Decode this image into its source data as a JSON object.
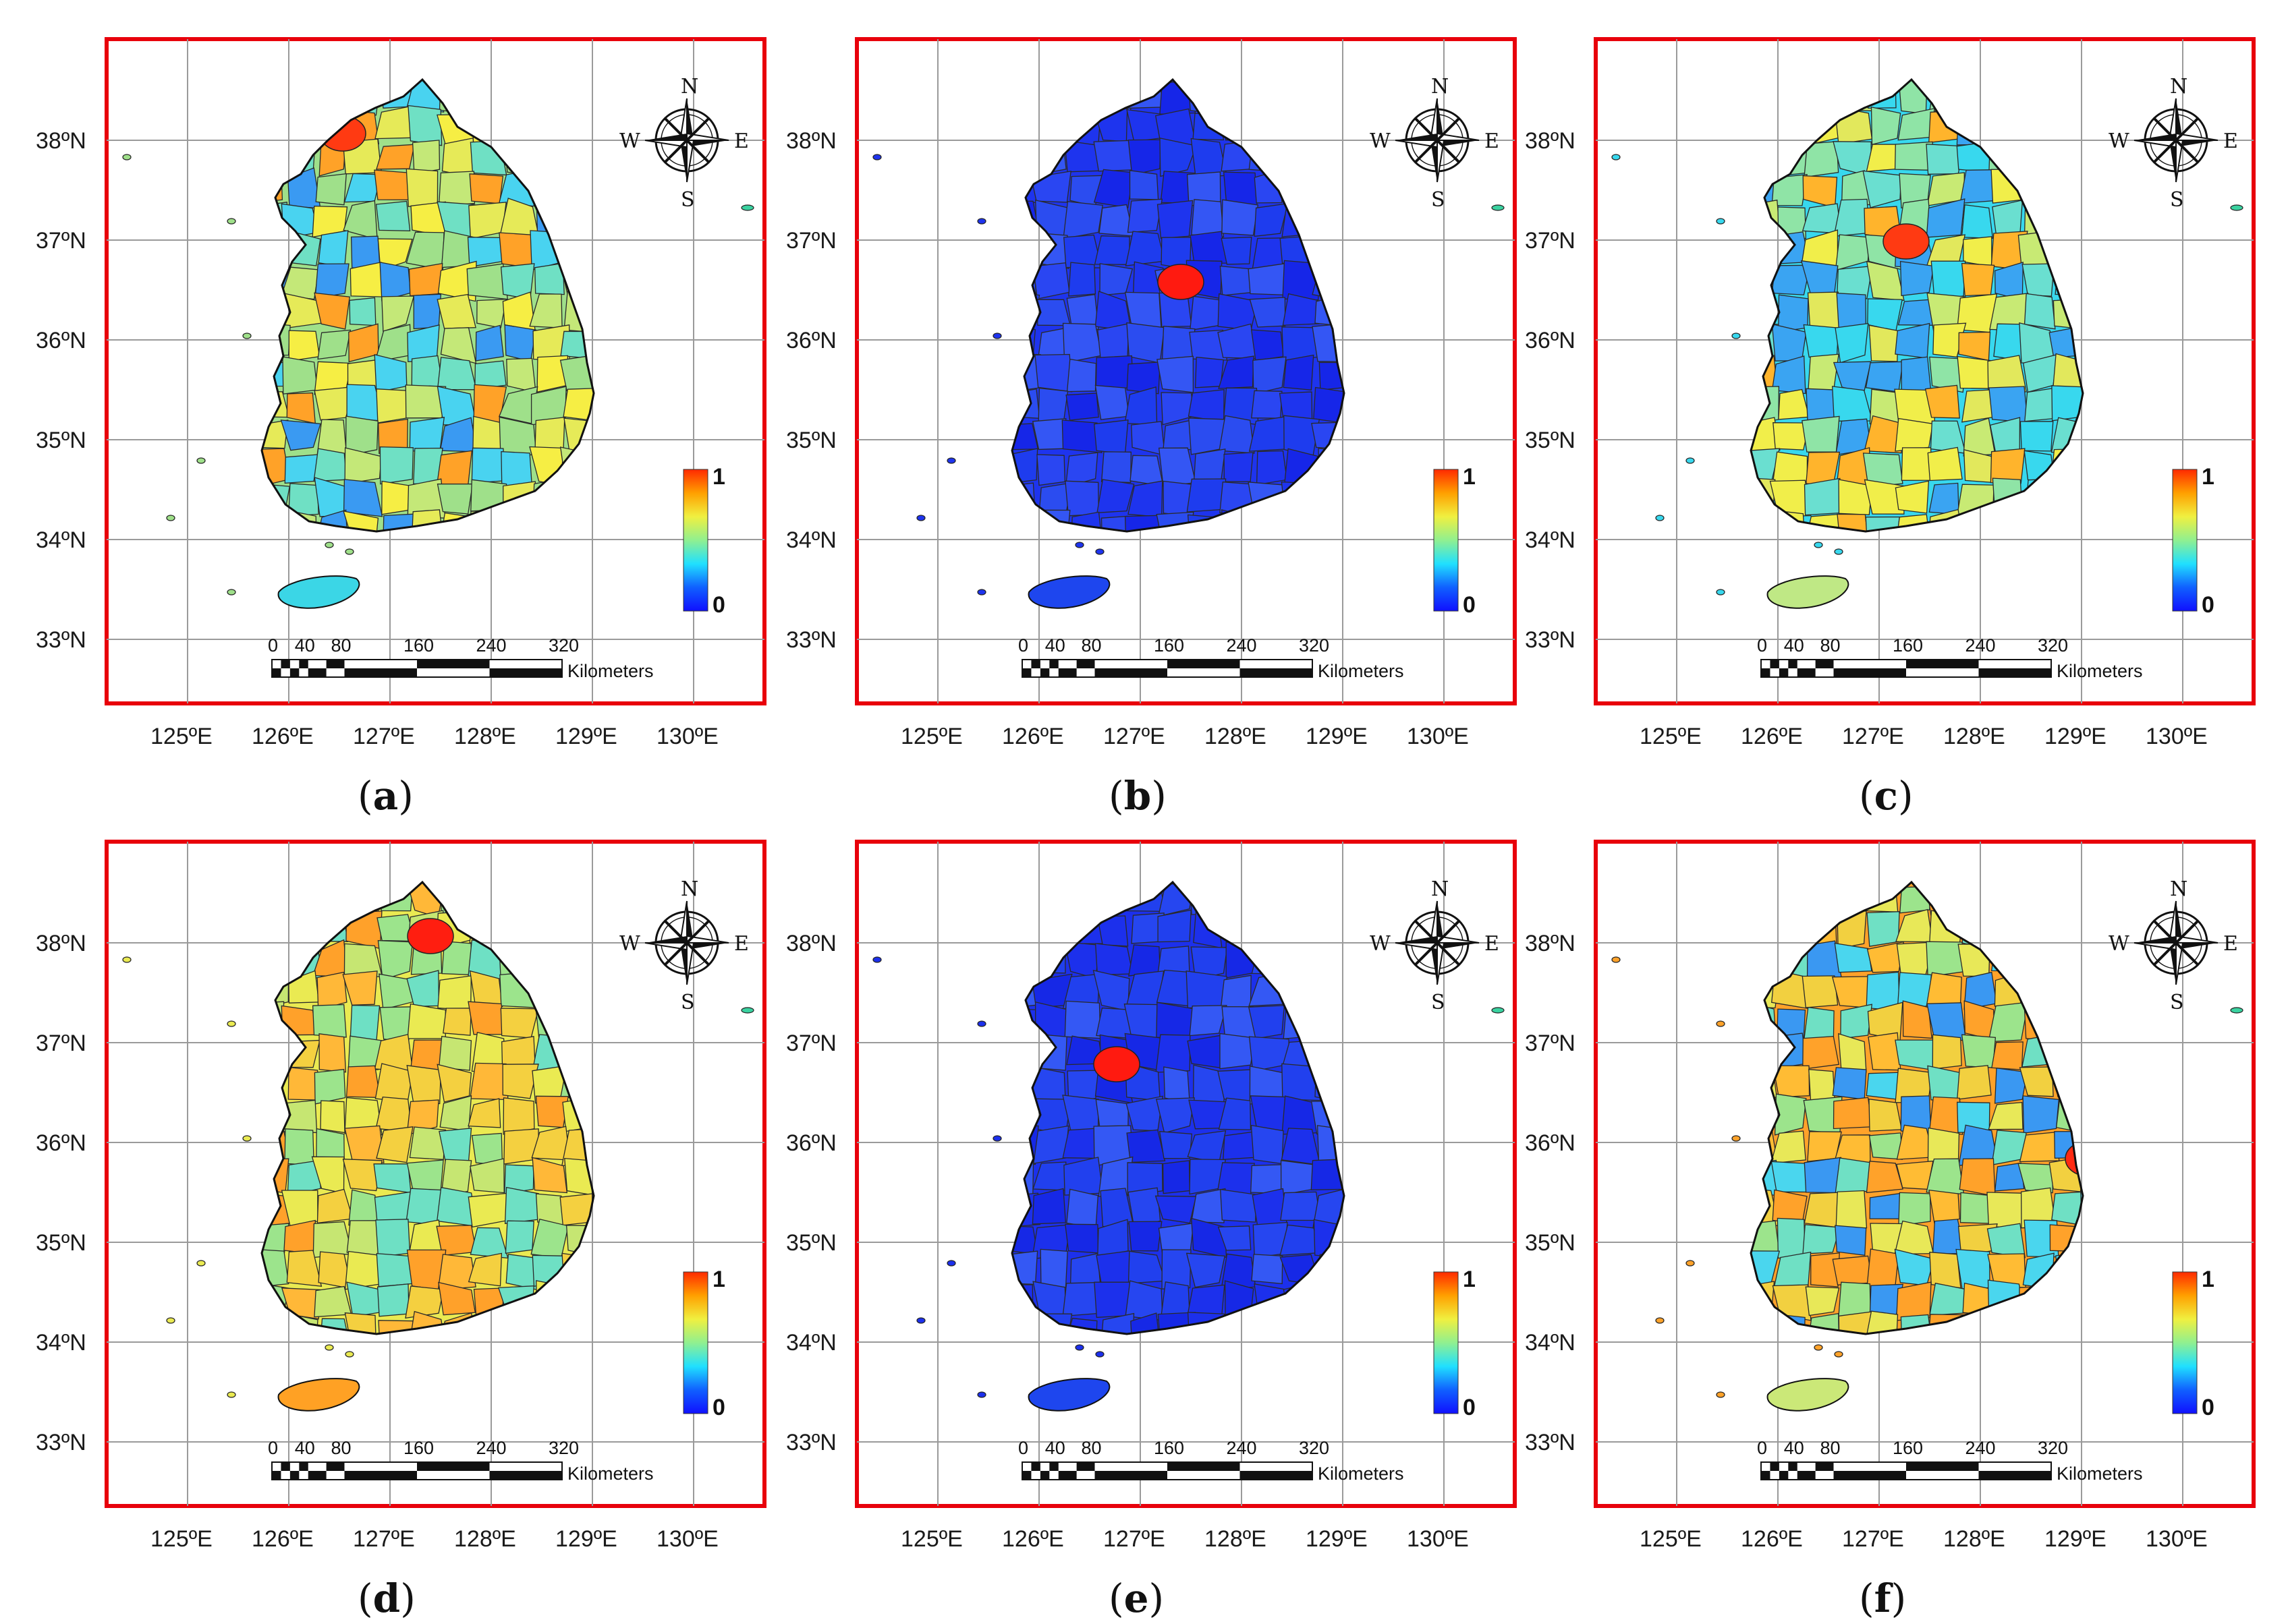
{
  "figure": {
    "lat_labels": [
      "38ºN",
      "37ºN",
      "36ºN",
      "35ºN",
      "34ºN",
      "33ºN"
    ],
    "lon_labels": [
      "125ºE",
      "126ºE",
      "127ºE",
      "128ºE",
      "129ºE",
      "130ºE"
    ],
    "scalebar": {
      "ticks": [
        "0",
        "40",
        "80",
        "160",
        "240",
        "320"
      ],
      "unit": "Kilometers"
    },
    "colorbar": {
      "max_label": "1",
      "min_label": "0",
      "gradient": [
        "#ff2a00",
        "#ffa000",
        "#f0f040",
        "#90f090",
        "#20e0ff",
        "#1060ff",
        "#1010ff"
      ]
    },
    "compass": {
      "n": "N",
      "s": "S",
      "e": "E",
      "w": "W"
    },
    "panels": [
      {
        "id": "a",
        "caption": "a",
        "region_colors": [
          "#9fe08a",
          "#49d3f0",
          "#e6ea58",
          "#ffa228",
          "#6fe0c4",
          "#f6ee44",
          "#3a9af2",
          "#c4e878"
        ],
        "hotspot_color": "#ff3a12",
        "island_color": "#3bd6e6"
      },
      {
        "id": "b",
        "caption": "b",
        "region_colors": [
          "#1e34ee",
          "#2a46f2",
          "#1626e8",
          "#3456f4",
          "#1e3cee",
          "#2b4cf0"
        ],
        "hotspot_color": "#ff1a10",
        "island_color": "#1e46ee"
      },
      {
        "id": "c",
        "caption": "c",
        "region_colors": [
          "#38d8ee",
          "#6adfd0",
          "#c8ea74",
          "#f1ee4a",
          "#3aa4f2",
          "#8fe4a6",
          "#e2e85c",
          "#ffb42c"
        ],
        "hotspot_color": "#ff3a12",
        "island_color": "#bfe885"
      },
      {
        "id": "d",
        "caption": "d",
        "region_colors": [
          "#eaea52",
          "#c6e672",
          "#ffa12a",
          "#9ce48c",
          "#f4d040",
          "#6ee0c4",
          "#ffb838"
        ],
        "hotspot_color": "#ff1e10",
        "island_color": "#ffa124"
      },
      {
        "id": "e",
        "caption": "e",
        "region_colors": [
          "#1c30ec",
          "#2646f0",
          "#1628e6",
          "#3458f4",
          "#2140ee"
        ],
        "hotspot_color": "#ff1a10",
        "island_color": "#1e46ee"
      },
      {
        "id": "f",
        "caption": "f",
        "region_colors": [
          "#ffa22a",
          "#4ad6ee",
          "#e8e858",
          "#9ce48c",
          "#ffbc34",
          "#3a98f2",
          "#f2d040",
          "#6fe0c4"
        ],
        "hotspot_color": "#ff2a12",
        "island_color": "#cbe878"
      }
    ]
  }
}
